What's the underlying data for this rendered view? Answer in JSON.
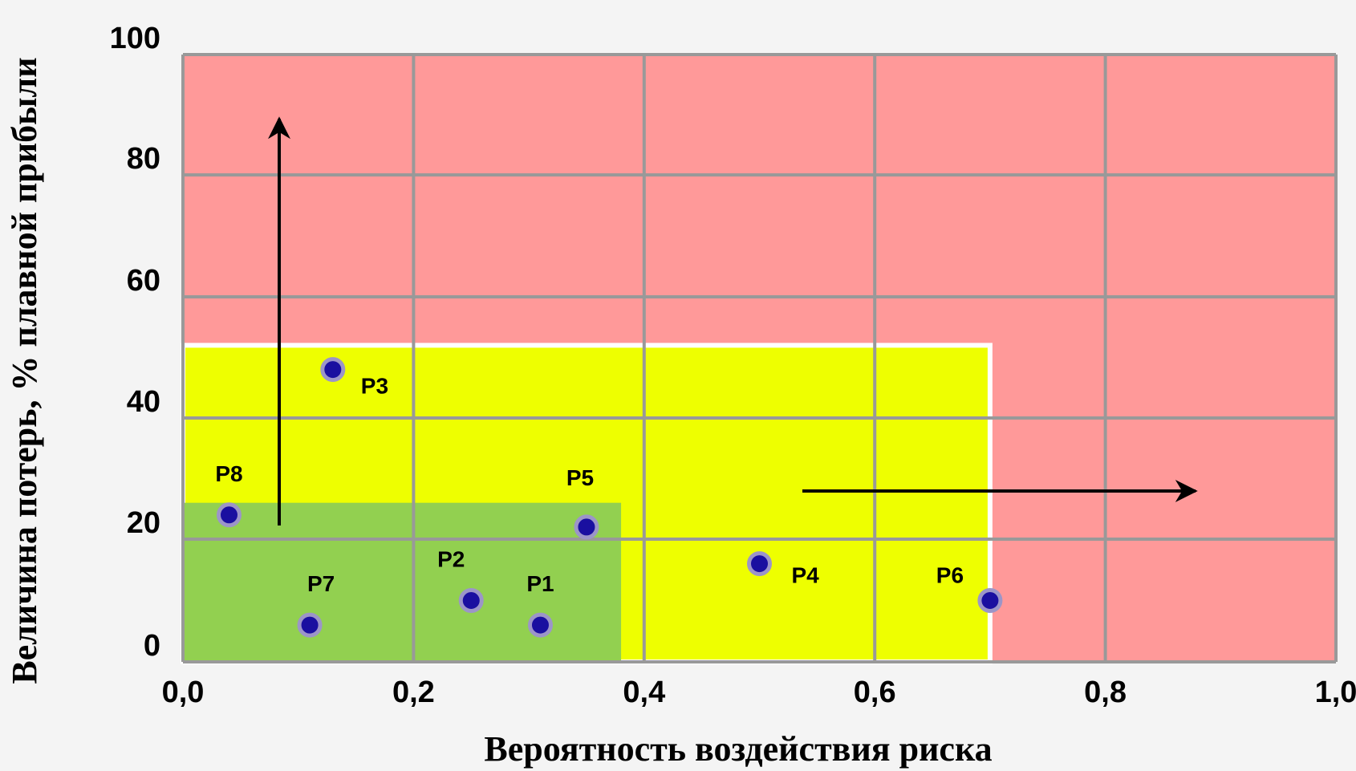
{
  "chart_data": {
    "type": "scatter",
    "xlabel": "Вероятность воздействия риска",
    "ylabel": "Величина потерь, % плавной прибыли",
    "xlim": [
      0,
      1
    ],
    "ylim": [
      0,
      100
    ],
    "x_ticks": [
      "0,0",
      "0,2",
      "0,4",
      "0,6",
      "0,8",
      "1,0"
    ],
    "y_ticks": [
      "0",
      "20",
      "40",
      "60",
      "80",
      "100"
    ],
    "grid": true,
    "zones": [
      {
        "color": "#ff9999",
        "x_range": [
          0,
          1.0
        ],
        "y_range": [
          0,
          100
        ]
      },
      {
        "color": "#eeff00",
        "x_range": [
          0,
          0.7
        ],
        "y_range": [
          0,
          52
        ]
      },
      {
        "color": "#92d050",
        "x_range": [
          0,
          0.38
        ],
        "y_range": [
          0,
          26
        ]
      }
    ],
    "points": [
      {
        "label": "P1",
        "x": 0.31,
        "y": 6
      },
      {
        "label": "P2",
        "x": 0.25,
        "y": 10
      },
      {
        "label": "P3",
        "x": 0.13,
        "y": 48
      },
      {
        "label": "P4",
        "x": 0.5,
        "y": 16
      },
      {
        "label": "P5",
        "x": 0.35,
        "y": 22
      },
      {
        "label": "P6",
        "x": 0.7,
        "y": 10
      },
      {
        "label": "P7",
        "x": 0.11,
        "y": 6
      },
      {
        "label": "P8",
        "x": 0.04,
        "y": 24
      }
    ],
    "point_color": "#1a0fa0"
  }
}
